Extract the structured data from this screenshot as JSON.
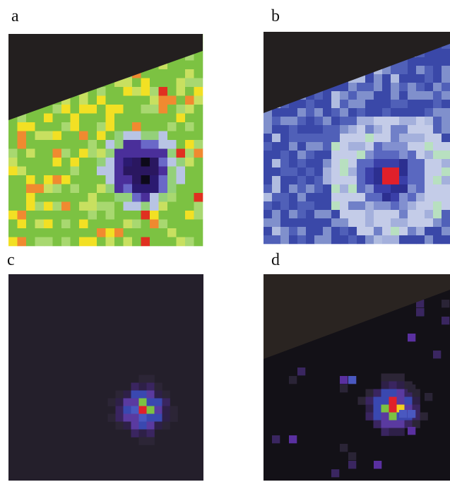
{
  "panels": [
    {
      "label": "a"
    },
    {
      "label": "b"
    },
    {
      "label": "c"
    },
    {
      "label": "d"
    }
  ]
}
